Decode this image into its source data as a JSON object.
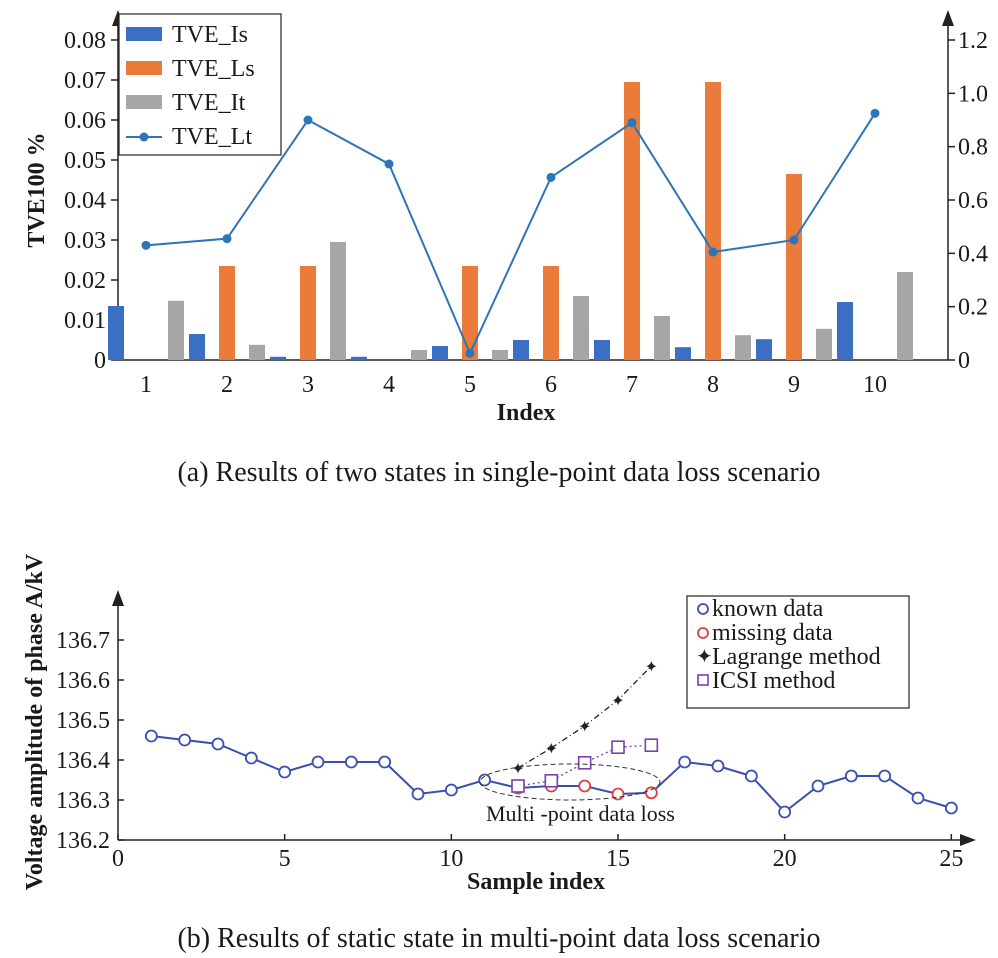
{
  "chart_data": [
    {
      "type": "bar",
      "caption": "(a) Results of two states in single-point data loss scenario",
      "xlabel": "Index",
      "ylabel": "TVE100 %",
      "categories": [
        "1",
        "2",
        "3",
        "4",
        "5",
        "6",
        "7",
        "8",
        "9",
        "10"
      ],
      "ylim": [
        0,
        0.085
      ],
      "yticks": [
        "0",
        "0.01",
        "0.02",
        "0.03",
        "0.04",
        "0.05",
        "0.06",
        "0.07",
        "0.08"
      ],
      "y2lim": [
        0,
        1.275
      ],
      "y2ticks": [
        "0",
        "0.2",
        "0.4",
        "0.6",
        "0.8",
        "1.0",
        "1.2"
      ],
      "legend_position": "top-left",
      "series": [
        {
          "name": "TVE_Is",
          "kind": "bar",
          "axis": "left",
          "color": "#3a6fc4",
          "values": [
            0.0135,
            0.0065,
            0.0008,
            0.0008,
            0.0035,
            0.005,
            0.005,
            0.0032,
            0.0052,
            0.0145
          ]
        },
        {
          "name": "TVE_Ls",
          "kind": "bar",
          "axis": "left",
          "color": "#ea7b3a",
          "values": [
            0,
            0.0235,
            0.0235,
            0,
            0.0235,
            0.0235,
            0.0695,
            0.0695,
            0.0465,
            0
          ]
        },
        {
          "name": "TVE_It",
          "kind": "bar",
          "axis": "left",
          "color": "#a6a6a6",
          "values": [
            0.0148,
            0.0038,
            0.0295,
            0.0025,
            0.0025,
            0.016,
            0.011,
            0.0062,
            0.0078,
            0.022
          ]
        },
        {
          "name": "TVE_Lt",
          "kind": "line",
          "axis": "right",
          "color": "#2e74b8",
          "values": [
            0.43,
            0.455,
            0.9,
            0.735,
            0.025,
            0.685,
            0.89,
            0.405,
            0.45,
            0.925
          ]
        }
      ]
    },
    {
      "type": "line",
      "caption": "(b) Results of static state in multi-point data loss scenario",
      "xlabel": "Sample index",
      "ylabel": "Voltage amplitude of phase A/kV",
      "xlim": [
        0,
        25.5
      ],
      "xticks": [
        "0",
        "5",
        "10",
        "15",
        "20",
        "25"
      ],
      "ylim": [
        136.2,
        136.8
      ],
      "yticks": [
        "136.2",
        "136.3",
        "136.4",
        "136.5",
        "136.6",
        "136.7"
      ],
      "legend_position": "top-right",
      "annotation": "Multi -point data loss",
      "series": [
        {
          "name": "known data",
          "marker": "circle",
          "color": "#3a4fb0",
          "x": [
            1,
            2,
            3,
            4,
            5,
            6,
            7,
            8,
            9,
            10,
            11,
            12,
            13,
            14,
            15,
            16,
            17,
            18,
            19,
            20,
            21,
            22,
            23,
            24,
            25
          ],
          "y": [
            136.46,
            136.45,
            136.44,
            136.405,
            136.37,
            136.395,
            136.395,
            136.395,
            136.315,
            136.325,
            136.35,
            136.33,
            136.335,
            136.335,
            136.315,
            136.318,
            136.395,
            136.385,
            136.36,
            136.27,
            136.335,
            136.36,
            136.36,
            136.305,
            136.28
          ]
        },
        {
          "name": "missing data",
          "marker": "circle",
          "color": "#e04040",
          "x": [
            12,
            13,
            14,
            15,
            16
          ],
          "y": [
            136.33,
            136.335,
            136.335,
            136.315,
            136.318
          ]
        },
        {
          "name": "Lagrange method",
          "marker": "star",
          "color": "#222222",
          "x": [
            12,
            13,
            14,
            15,
            16
          ],
          "y": [
            136.38,
            136.43,
            136.485,
            136.55,
            136.635
          ]
        },
        {
          "name": "ICSI method",
          "marker": "square",
          "color": "#7a3fb0",
          "x": [
            12,
            13,
            14,
            15,
            16
          ],
          "y": [
            136.335,
            136.348,
            136.393,
            136.432,
            136.437
          ]
        }
      ]
    }
  ]
}
